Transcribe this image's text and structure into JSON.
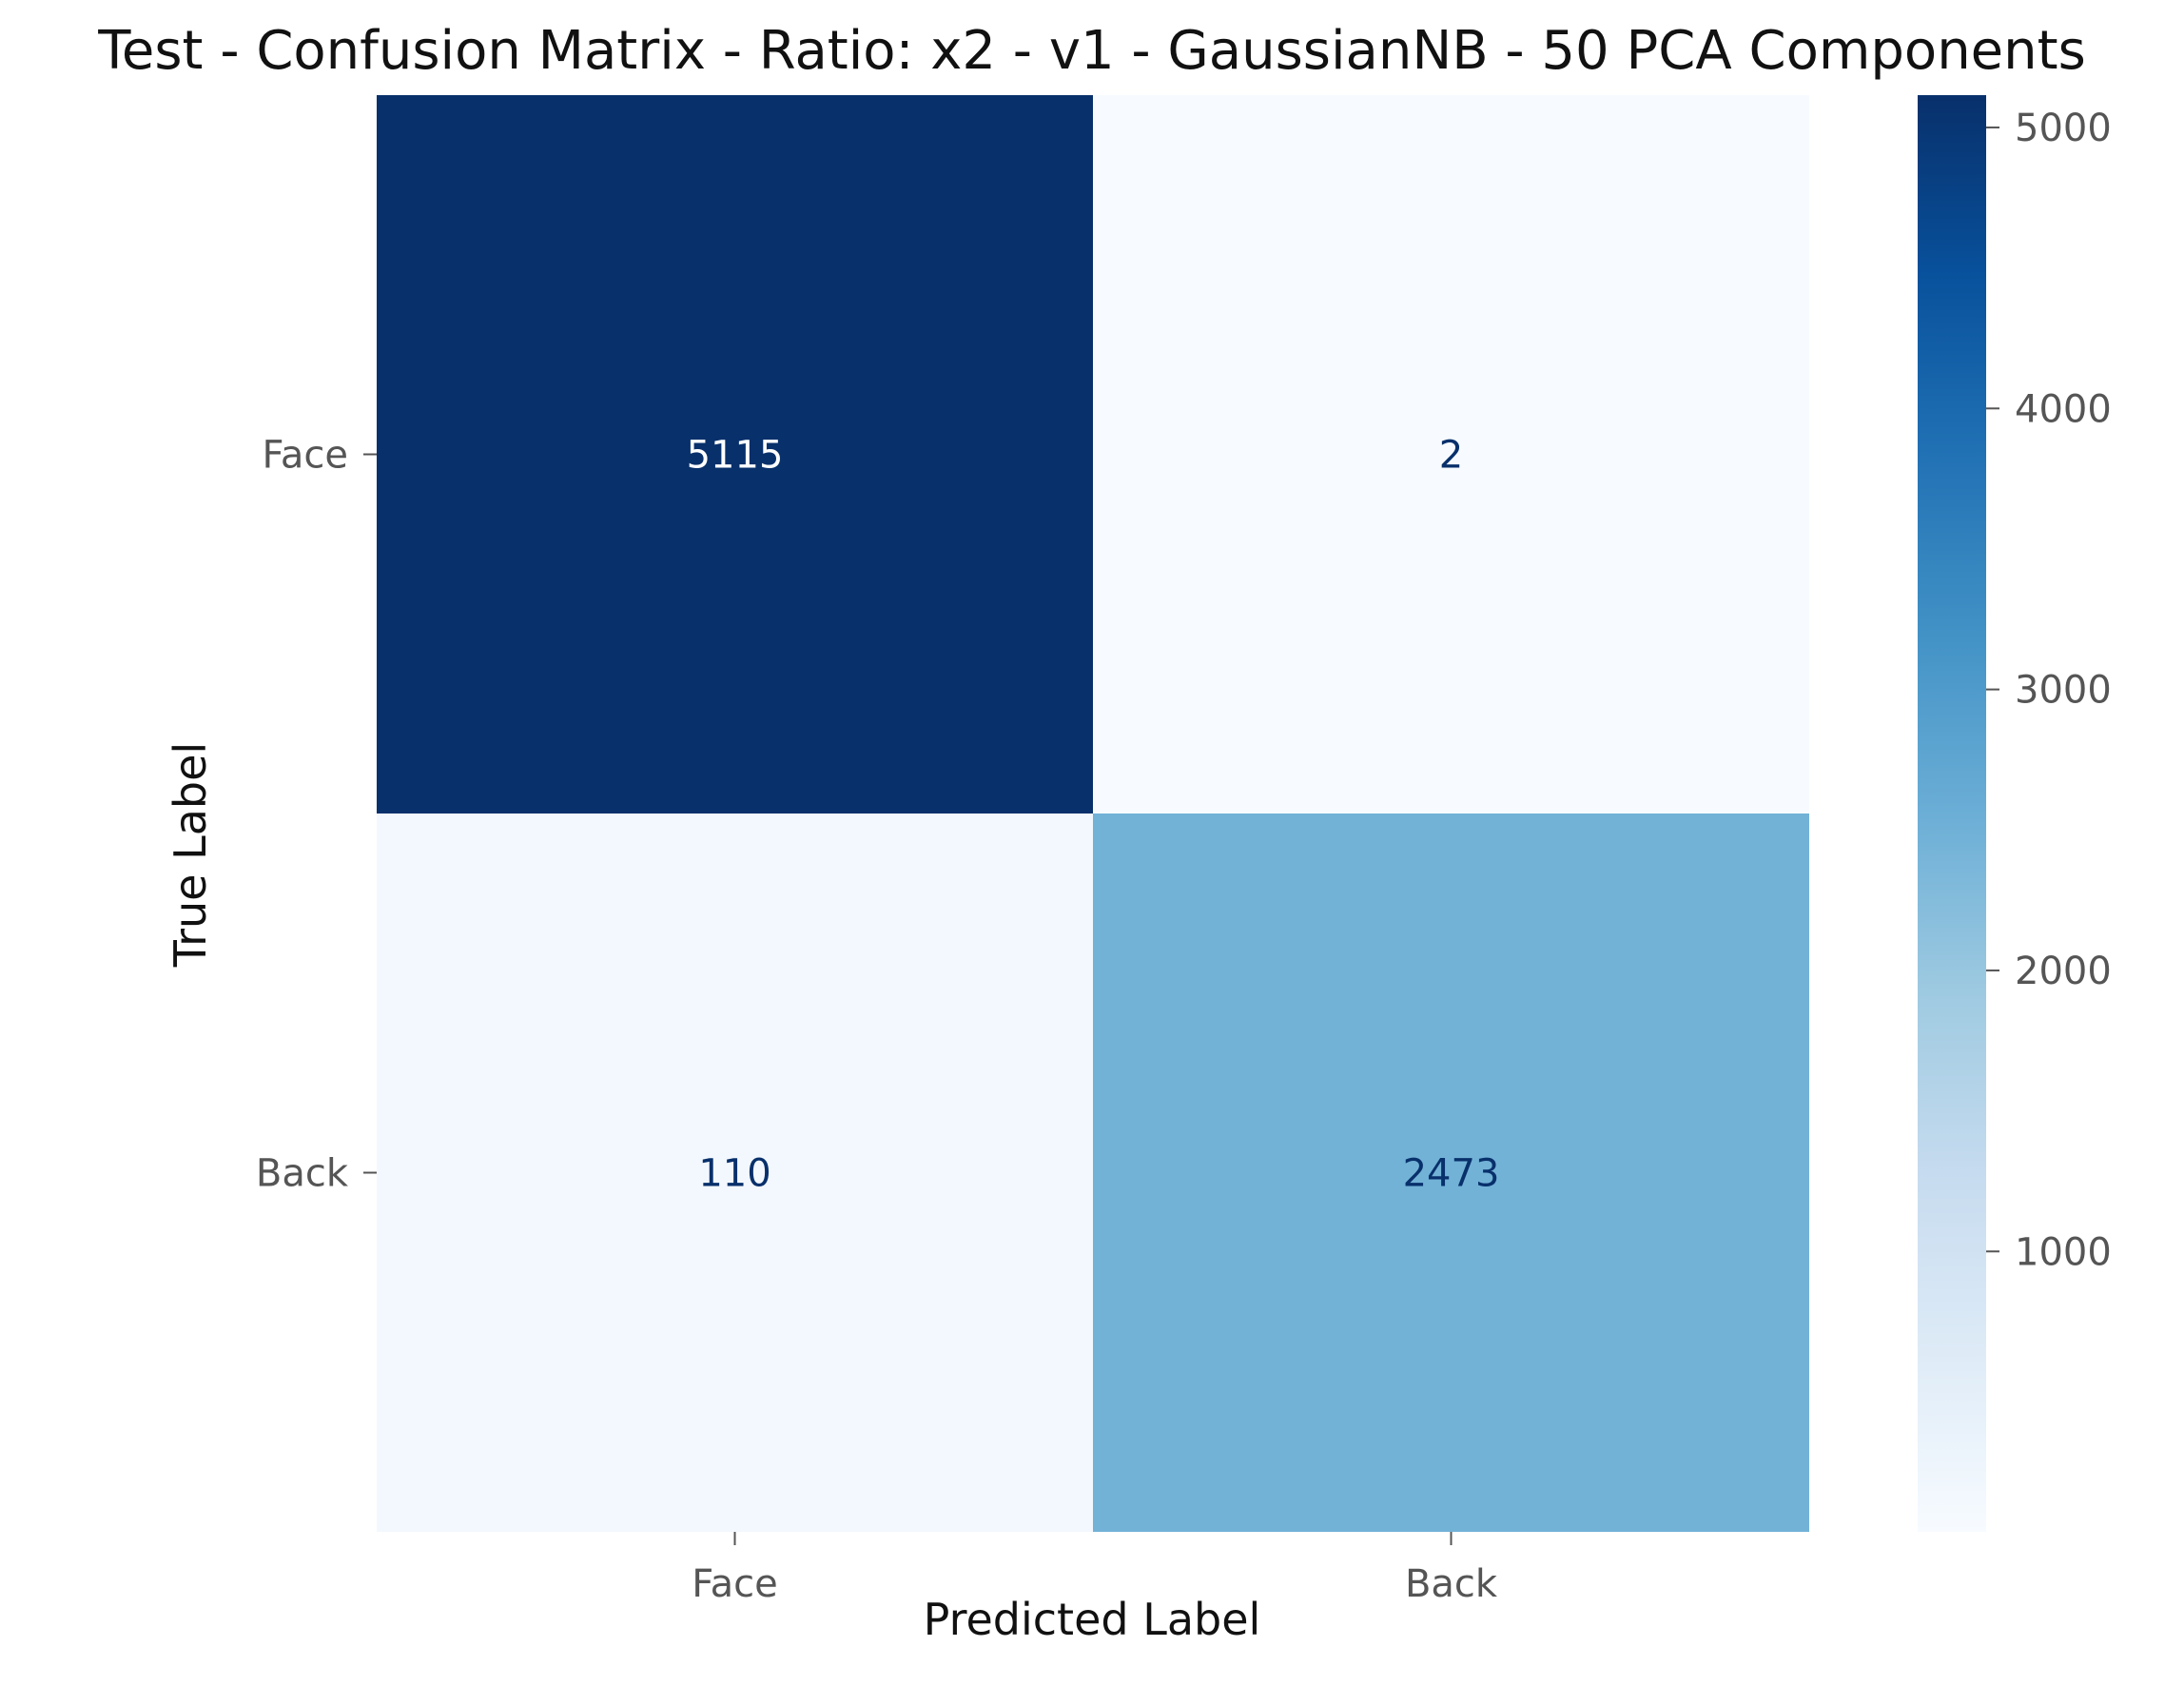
{
  "chart_data": {
    "type": "heatmap",
    "title": "Test - Confusion Matrix - Ratio: x2 - v1 - GaussianNB - 50 PCA Components",
    "xlabel": "Predicted Label",
    "ylabel": "True Label",
    "x_categories": [
      "Face",
      "Back"
    ],
    "y_categories": [
      "Face",
      "Back"
    ],
    "values": [
      [
        5115,
        2
      ],
      [
        110,
        2473
      ]
    ],
    "colormap": "Blues",
    "colorbar": {
      "range": [
        2,
        5115
      ],
      "ticks": [
        1000,
        2000,
        3000,
        4000,
        5000
      ]
    },
    "grid": false
  }
}
